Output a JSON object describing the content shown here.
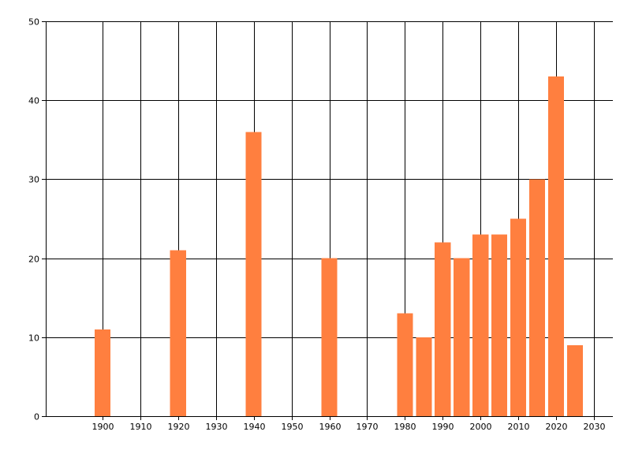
{
  "chart_data": {
    "type": "bar",
    "title": "",
    "xlabel": "",
    "ylabel": "",
    "x": [
      1900,
      1920,
      1940,
      1960,
      1980,
      1985,
      1990,
      1995,
      2000,
      2005,
      2010,
      2015,
      2020,
      2025
    ],
    "values": [
      11,
      21,
      36,
      20,
      13,
      10,
      22,
      20,
      23,
      23,
      25,
      30,
      43,
      9
    ],
    "xlim": [
      1885,
      2035
    ],
    "ylim": [
      0,
      50
    ],
    "x_ticks": [
      1900,
      1910,
      1920,
      1930,
      1940,
      1950,
      1960,
      1970,
      1980,
      1990,
      2000,
      2010,
      2020,
      2030
    ],
    "y_ticks": [
      0,
      10,
      20,
      30,
      40,
      50
    ],
    "grid": true,
    "bar_color": "#ff7f3f"
  }
}
